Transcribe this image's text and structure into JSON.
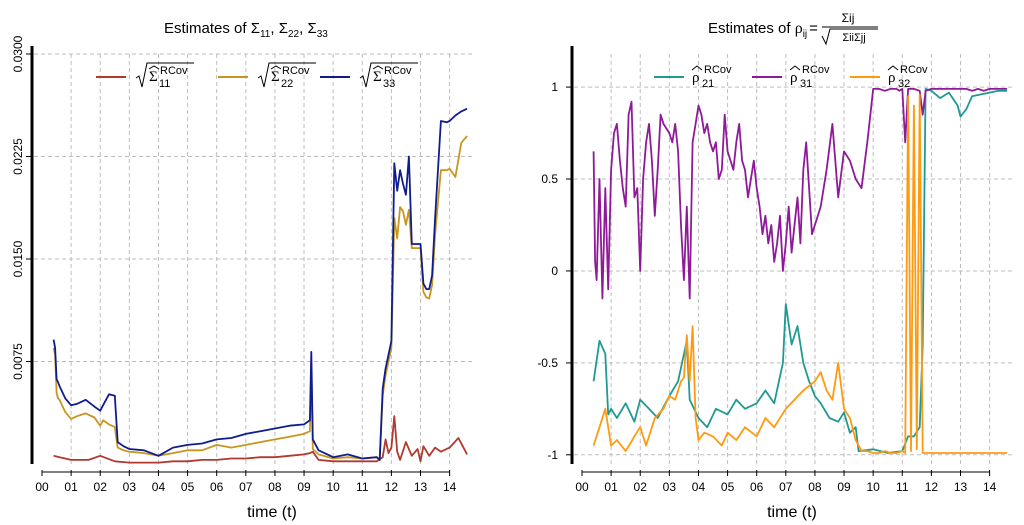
{
  "chart_data": [
    {
      "type": "line",
      "title": "Estimates of Σ11, Σ22, Σ33",
      "title_parts": {
        "lead": "Estimates of ",
        "sym": "Σ",
        "s1": "11",
        "s2": "22",
        "s3": "33"
      },
      "xlabel": "time (t)",
      "ylabel": "",
      "x_ticks": [
        "00",
        "01",
        "02",
        "03",
        "04",
        "05",
        "06",
        "07",
        "08",
        "09",
        "10",
        "11",
        "12",
        "13",
        "14"
      ],
      "y_ticks": [
        "0.0075",
        "0.0150",
        "0.0225",
        "0.0300"
      ],
      "y_tick_values": [
        0.0075,
        0.015,
        0.0225,
        0.03
      ],
      "xlim": [
        0,
        14.7
      ],
      "ylim": [
        0.0,
        0.03
      ],
      "grid": true,
      "legend_position": "top",
      "legend": [
        {
          "label": "√Σ11 RCov",
          "sub": "11",
          "sup": "RCov",
          "color": "#b03a30"
        },
        {
          "label": "√Σ22 RCov",
          "sub": "22",
          "sup": "RCov",
          "color": "#c8961e"
        },
        {
          "label": "√Σ33 RCov",
          "sub": "33",
          "sup": "RCov",
          "color": "#0f1d8c"
        }
      ],
      "series": [
        {
          "name": "Sigma11",
          "color": "#b03a30",
          "x": [
            0.4,
            0.6,
            0.8,
            1.0,
            1.3,
            1.6,
            2.0,
            2.5,
            3.0,
            3.5,
            4.0,
            4.5,
            5.0,
            5.5,
            6.0,
            6.5,
            7.0,
            7.5,
            8.0,
            8.5,
            9.0,
            9.2,
            9.3,
            9.5,
            10.0,
            10.5,
            11.0,
            11.5,
            11.7,
            11.8,
            11.9,
            12.0,
            12.1,
            12.2,
            12.3,
            12.5,
            12.7,
            12.9,
            13.0,
            13.1,
            13.3,
            13.5,
            13.7,
            14.0,
            14.3,
            14.6
          ],
          "values": [
            0.0006,
            0.0005,
            0.0004,
            0.0003,
            0.0003,
            0.0003,
            0.0006,
            0.0002,
            0.0001,
            0.0001,
            0.0001,
            0.0002,
            0.0002,
            0.0003,
            0.0003,
            0.0004,
            0.0004,
            0.0005,
            0.0005,
            0.0006,
            0.0007,
            0.0008,
            0.0009,
            0.0003,
            0.0002,
            0.0002,
            0.0002,
            0.0002,
            0.0005,
            0.0018,
            0.0008,
            0.0012,
            0.0035,
            0.0009,
            0.0003,
            0.0016,
            0.0006,
            0.0011,
            0.0002,
            0.0013,
            0.0006,
            0.0012,
            0.0009,
            0.0012,
            0.0019,
            0.0007
          ]
        },
        {
          "name": "Sigma22",
          "color": "#c8961e",
          "x": [
            0.4,
            0.45,
            0.5,
            0.55,
            0.6,
            0.8,
            1.0,
            1.2,
            1.5,
            1.8,
            2.0,
            2.1,
            2.3,
            2.5,
            2.6,
            2.8,
            3.0,
            3.5,
            4.0,
            4.5,
            5.0,
            5.5,
            6.0,
            6.5,
            7.0,
            7.5,
            8.0,
            8.5,
            9.0,
            9.2,
            9.25,
            9.3,
            9.5,
            10.0,
            10.5,
            11.0,
            11.5,
            11.6,
            11.7,
            11.8,
            12.0,
            12.1,
            12.2,
            12.3,
            12.4,
            12.5,
            12.6,
            12.7,
            12.9,
            13.0,
            13.1,
            13.2,
            13.3,
            13.4,
            13.5,
            13.7,
            13.9,
            14.0,
            14.2,
            14.4,
            14.6
          ],
          "values": [
            0.0085,
            0.008,
            0.0052,
            0.0048,
            0.0047,
            0.0038,
            0.0033,
            0.0035,
            0.0037,
            0.0034,
            0.0028,
            0.0032,
            0.0029,
            0.0027,
            0.0012,
            0.001,
            0.0009,
            0.0008,
            0.0006,
            0.0008,
            0.001,
            0.001,
            0.0014,
            0.0012,
            0.0014,
            0.0016,
            0.0018,
            0.002,
            0.0022,
            0.0024,
            0.0075,
            0.0011,
            0.0007,
            0.0004,
            0.0005,
            0.0004,
            0.0005,
            0.0003,
            0.005,
            0.0065,
            0.0085,
            0.018,
            0.0165,
            0.0188,
            0.0185,
            0.0175,
            0.0186,
            0.0158,
            0.0158,
            0.0158,
            0.0126,
            0.0122,
            0.0121,
            0.0131,
            0.0168,
            0.0215,
            0.0215,
            0.0216,
            0.021,
            0.0235,
            0.024
          ]
        },
        {
          "name": "Sigma33",
          "color": "#0f1d8c",
          "x": [
            0.4,
            0.45,
            0.5,
            0.55,
            0.6,
            0.8,
            1.0,
            1.2,
            1.5,
            1.8,
            2.0,
            2.1,
            2.3,
            2.5,
            2.6,
            2.8,
            3.0,
            3.5,
            4.0,
            4.5,
            5.0,
            5.5,
            6.0,
            6.5,
            7.0,
            7.5,
            8.0,
            8.5,
            9.0,
            9.2,
            9.25,
            9.3,
            9.5,
            10.0,
            10.5,
            11.0,
            11.5,
            11.6,
            11.7,
            11.8,
            12.0,
            12.1,
            12.2,
            12.3,
            12.4,
            12.5,
            12.6,
            12.7,
            12.9,
            13.0,
            13.1,
            13.2,
            13.3,
            13.4,
            13.5,
            13.7,
            13.9,
            14.0,
            14.2,
            14.4,
            14.6
          ],
          "values": [
            0.0091,
            0.0085,
            0.0062,
            0.006,
            0.0057,
            0.0048,
            0.0043,
            0.0044,
            0.0047,
            0.0042,
            0.0039,
            0.0043,
            0.0051,
            0.005,
            0.0016,
            0.0013,
            0.0011,
            0.001,
            0.0006,
            0.0012,
            0.0014,
            0.0015,
            0.0018,
            0.0019,
            0.0022,
            0.0024,
            0.0026,
            0.0028,
            0.0029,
            0.0032,
            0.0082,
            0.0018,
            0.001,
            0.0005,
            0.0007,
            0.0004,
            0.0005,
            0.0003,
            0.0055,
            0.007,
            0.009,
            0.022,
            0.02,
            0.0215,
            0.0205,
            0.0197,
            0.0225,
            0.0161,
            0.0161,
            0.0161,
            0.0132,
            0.0128,
            0.0128,
            0.0138,
            0.018,
            0.0251,
            0.025,
            0.0251,
            0.0255,
            0.0258,
            0.026
          ]
        }
      ]
    },
    {
      "type": "line",
      "title": "Estimates of ρij = Σij / √(ΣiiΣjj)",
      "title_parts": {
        "lead": "Estimates of ",
        "rho": "ρ",
        "ij": "ij",
        "eq": "=",
        "num": "Σij",
        "den": "ΣiiΣjj"
      },
      "xlabel": "time (t)",
      "ylabel": "",
      "x_ticks": [
        "00",
        "01",
        "02",
        "03",
        "04",
        "05",
        "06",
        "07",
        "08",
        "09",
        "10",
        "11",
        "12",
        "13",
        "14"
      ],
      "y_ticks": [
        "-1",
        "-0.5",
        "0",
        "0.5",
        "1"
      ],
      "y_tick_values": [
        -1,
        -0.5,
        0,
        0.5,
        1
      ],
      "xlim": [
        0,
        14.7
      ],
      "ylim": [
        -1.05,
        1.18
      ],
      "grid": true,
      "legend_position": "top",
      "legend": [
        {
          "label": "ρ21 RCov",
          "sub": "21",
          "sup": "RCov",
          "color": "#1f9a92"
        },
        {
          "label": "ρ31 RCov",
          "sub": "31",
          "sup": "RCov",
          "color": "#8f1a99"
        },
        {
          "label": "ρ32 RCov",
          "sub": "32",
          "sup": "RCov",
          "color": "#ff9a10"
        }
      ],
      "series": [
        {
          "name": "rho21",
          "color": "#1f9a92",
          "x": [
            0.4,
            0.6,
            0.8,
            0.9,
            1.0,
            1.2,
            1.5,
            1.8,
            2.0,
            2.3,
            2.6,
            3.0,
            3.3,
            3.6,
            3.7,
            4.0,
            4.3,
            4.6,
            5.0,
            5.3,
            5.6,
            6.0,
            6.3,
            6.6,
            6.9,
            7.0,
            7.2,
            7.4,
            7.6,
            7.8,
            8.0,
            8.2,
            8.5,
            8.8,
            9.0,
            9.2,
            9.4,
            9.5,
            10.0,
            10.5,
            11.0,
            11.2,
            11.4,
            11.6,
            11.7,
            11.8,
            12.0,
            12.3,
            12.6,
            12.9,
            13.0,
            13.2,
            13.4,
            13.7,
            14.0,
            14.3,
            14.6
          ],
          "values": [
            -0.6,
            -0.38,
            -0.45,
            -0.78,
            -0.75,
            -0.8,
            -0.72,
            -0.82,
            -0.7,
            -0.75,
            -0.8,
            -0.68,
            -0.6,
            -0.38,
            -0.7,
            -0.8,
            -0.85,
            -0.75,
            -0.78,
            -0.7,
            -0.75,
            -0.72,
            -0.65,
            -0.72,
            -0.5,
            -0.18,
            -0.4,
            -0.3,
            -0.5,
            -0.6,
            -0.68,
            -0.72,
            -0.8,
            -0.82,
            -0.77,
            -0.88,
            -0.85,
            -0.98,
            -0.97,
            -0.99,
            -0.98,
            -0.9,
            -0.9,
            -0.85,
            -0.4,
            0.99,
            0.98,
            0.94,
            0.97,
            0.9,
            0.84,
            0.88,
            0.95,
            0.96,
            0.97,
            0.98,
            0.98
          ]
        },
        {
          "name": "rho31",
          "color": "#8f1a99",
          "x": [
            0.4,
            0.45,
            0.5,
            0.6,
            0.7,
            0.8,
            0.9,
            1.0,
            1.1,
            1.2,
            1.3,
            1.4,
            1.5,
            1.6,
            1.7,
            1.8,
            1.9,
            2.0,
            2.1,
            2.2,
            2.3,
            2.4,
            2.5,
            2.6,
            2.7,
            2.8,
            3.0,
            3.1,
            3.2,
            3.3,
            3.4,
            3.5,
            3.6,
            3.7,
            3.8,
            3.9,
            4.0,
            4.1,
            4.2,
            4.3,
            4.4,
            4.5,
            4.6,
            4.7,
            4.8,
            4.9,
            5.0,
            5.1,
            5.2,
            5.3,
            5.4,
            5.5,
            5.6,
            5.7,
            5.8,
            5.9,
            6.0,
            6.1,
            6.2,
            6.3,
            6.4,
            6.5,
            6.6,
            6.7,
            6.8,
            6.9,
            7.0,
            7.1,
            7.2,
            7.3,
            7.4,
            7.5,
            7.6,
            7.7,
            7.8,
            7.9,
            8.0,
            8.2,
            8.4,
            8.6,
            8.8,
            9.0,
            9.2,
            9.4,
            9.6,
            9.8,
            10.0,
            10.2,
            10.4,
            10.6,
            10.8,
            10.9,
            11.0,
            11.1,
            11.2,
            11.4,
            11.6,
            11.7,
            11.8,
            12.0,
            12.5,
            13.0,
            13.2,
            13.4,
            13.6,
            13.8,
            14.0,
            14.3,
            14.6
          ],
          "values": [
            0.65,
            0.05,
            -0.05,
            0.5,
            -0.15,
            0.45,
            -0.1,
            0.55,
            0.75,
            0.8,
            0.6,
            0.45,
            0.35,
            0.85,
            0.92,
            0.4,
            0.45,
            0.0,
            0.5,
            0.7,
            0.8,
            0.6,
            0.3,
            0.55,
            0.85,
            0.8,
            0.75,
            0.7,
            0.8,
            0.65,
            0.25,
            -0.05,
            0.35,
            -0.15,
            0.7,
            0.8,
            0.9,
            0.85,
            0.75,
            0.8,
            0.7,
            0.65,
            0.7,
            0.5,
            0.55,
            0.85,
            0.65,
            0.6,
            0.55,
            0.7,
            0.8,
            0.6,
            0.55,
            0.4,
            0.5,
            0.6,
            0.45,
            0.35,
            0.2,
            0.3,
            0.15,
            0.25,
            0.05,
            0.15,
            0.3,
            0.0,
            0.15,
            0.35,
            0.1,
            0.25,
            0.4,
            0.15,
            0.55,
            0.7,
            0.45,
            0.2,
            0.25,
            0.35,
            0.55,
            0.8,
            0.4,
            0.65,
            0.6,
            0.5,
            0.45,
            0.7,
            0.99,
            0.99,
            0.98,
            0.99,
            0.99,
            0.98,
            0.99,
            0.7,
            0.99,
            0.99,
            0.98,
            0.85,
            0.98,
            0.99,
            0.99,
            0.99,
            0.99,
            0.98,
            0.99,
            0.98,
            0.99,
            0.99,
            0.99
          ]
        },
        {
          "name": "rho32",
          "color": "#ff9a10",
          "x": [
            0.4,
            0.6,
            0.8,
            1.0,
            1.2,
            1.5,
            1.8,
            2.0,
            2.2,
            2.5,
            2.8,
            3.0,
            3.2,
            3.4,
            3.5,
            3.6,
            3.7,
            3.8,
            3.9,
            4.0,
            4.2,
            4.5,
            4.8,
            5.0,
            5.3,
            5.6,
            6.0,
            6.3,
            6.6,
            7.0,
            7.3,
            7.6,
            8.0,
            8.2,
            8.4,
            8.6,
            8.8,
            9.0,
            9.2,
            9.4,
            9.6,
            9.8,
            10.0,
            10.2,
            10.4,
            10.6,
            10.8,
            11.0,
            11.1,
            11.2,
            11.3,
            11.4,
            11.5,
            11.6,
            11.7,
            11.8,
            12.0,
            12.5,
            13.0,
            13.5,
            14.0,
            14.6
          ],
          "values": [
            -0.95,
            -0.85,
            -0.75,
            -0.95,
            -0.92,
            -0.98,
            -0.9,
            -0.85,
            -0.95,
            -0.8,
            -0.75,
            -0.68,
            -0.7,
            -0.6,
            -0.58,
            -0.35,
            -0.6,
            -0.3,
            -0.8,
            -0.92,
            -0.88,
            -0.9,
            -0.95,
            -0.88,
            -0.92,
            -0.85,
            -0.9,
            -0.8,
            -0.85,
            -0.75,
            -0.7,
            -0.65,
            -0.6,
            -0.55,
            -0.65,
            -0.7,
            -0.5,
            -0.75,
            -0.8,
            -0.92,
            -0.98,
            -0.98,
            -0.99,
            -0.99,
            -0.98,
            -0.99,
            -0.99,
            -0.98,
            -0.99,
            0.95,
            -0.98,
            0.9,
            -0.97,
            0.96,
            -0.99,
            -0.99,
            -0.99,
            -0.99,
            -0.99,
            -0.99,
            -0.99,
            -0.99
          ]
        }
      ]
    }
  ]
}
